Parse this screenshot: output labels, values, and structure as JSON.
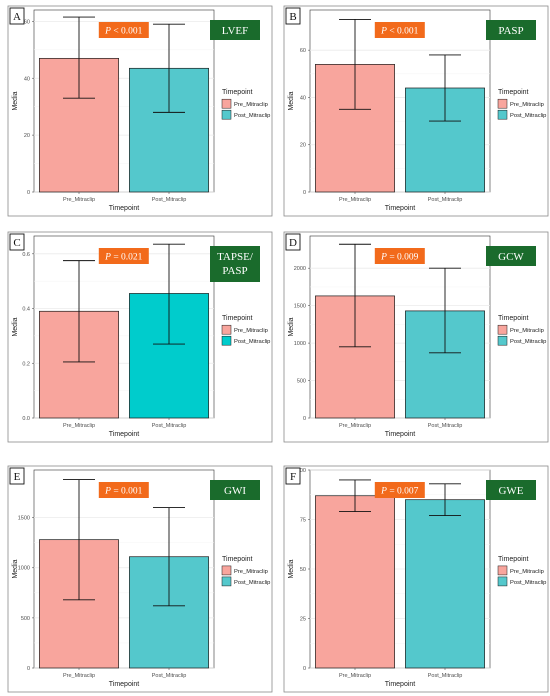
{
  "chart_data": [
    {
      "type": "bar",
      "panel_label": "A",
      "title": "LVEF",
      "p_label": "< 0.001",
      "xlabel": "Timepoint",
      "ylabel": "Media",
      "categories": [
        "Pre_Mitraclip",
        "Post_Mitraclip"
      ],
      "values": [
        47,
        43.5
      ],
      "error_low": [
        33,
        28
      ],
      "error_high": [
        61.5,
        59
      ],
      "ylim": [
        0,
        64
      ],
      "yticks": [
        0,
        20,
        40,
        60
      ],
      "ytick_labels": [
        "0",
        "20",
        "40",
        "60"
      ],
      "legend_title": "Timepoint",
      "legend": [
        "Pre_Mitraclip",
        "Post_Mitraclip"
      ],
      "legend_position": "right",
      "colors": [
        "#f8a59d",
        "#54c8cc"
      ],
      "grid": true
    },
    {
      "type": "bar",
      "panel_label": "B",
      "title": "PASP",
      "p_label": "< 0.001",
      "xlabel": "Timepoint",
      "ylabel": "Media",
      "categories": [
        "Pre_Mitraclip",
        "Post_Mitraclip"
      ],
      "values": [
        54,
        44
      ],
      "error_low": [
        35,
        30
      ],
      "error_high": [
        73,
        58
      ],
      "ylim": [
        0,
        77
      ],
      "yticks": [
        0,
        20,
        40,
        60
      ],
      "ytick_labels": [
        "0",
        "20",
        "40",
        "60"
      ],
      "legend_title": "Timepoint",
      "legend": [
        "Pre_Mitraclip",
        "Post_Mitraclip"
      ],
      "legend_position": "right",
      "colors": [
        "#f8a59d",
        "#54c8cc"
      ],
      "grid": true
    },
    {
      "type": "bar",
      "panel_label": "C",
      "title": "TAPSE/\nPASP",
      "p_label": "= 0.021",
      "xlabel": "Timepoint",
      "ylabel": "Media",
      "categories": [
        "Pre_Mitraclip",
        "Post_Mitraclip"
      ],
      "values": [
        0.39,
        0.455
      ],
      "error_low": [
        0.205,
        0.27
      ],
      "error_high": [
        0.575,
        0.635
      ],
      "ylim": [
        0,
        0.665
      ],
      "yticks": [
        0,
        0.2,
        0.4,
        0.6
      ],
      "ytick_labels": [
        "0.0",
        "0.2",
        "0.4",
        "0.6"
      ],
      "legend_title": "Timepoint",
      "legend": [
        "Pre_Mitraclip",
        "Post_Mitraclip"
      ],
      "legend_position": "right",
      "colors": [
        "#f8a59d",
        "#00cccc"
      ],
      "grid": true
    },
    {
      "type": "bar",
      "panel_label": "D",
      "title": "GCW",
      "p_label": "= 0.009",
      "xlabel": "Timepoint",
      "ylabel": "Media",
      "categories": [
        "Pre_Mitraclip",
        "Post_Mitraclip"
      ],
      "values": [
        1630,
        1430
      ],
      "error_low": [
        950,
        870
      ],
      "error_high": [
        2320,
        2000
      ],
      "ylim": [
        0,
        2430
      ],
      "yticks": [
        0,
        500,
        1000,
        1500,
        2000
      ],
      "ytick_labels": [
        "0",
        "500",
        "1000",
        "1500",
        "2000"
      ],
      "legend_title": "Timepoint",
      "legend": [
        "Pre_Mitraclip",
        "Post_Mitraclip"
      ],
      "legend_position": "right",
      "colors": [
        "#f8a59d",
        "#54c8cc"
      ],
      "grid": true
    },
    {
      "type": "bar",
      "panel_label": "E",
      "title": "GWI",
      "p_label": "= 0.001",
      "xlabel": "Timepoint",
      "ylabel": "Media",
      "categories": [
        "Pre_Mitraclip",
        "Post_Mitraclip"
      ],
      "values": [
        1280,
        1110
      ],
      "error_low": [
        680,
        620
      ],
      "error_high": [
        1880,
        1600
      ],
      "ylim": [
        0,
        1975
      ],
      "yticks": [
        0,
        500,
        1000,
        1500
      ],
      "ytick_labels": [
        "0",
        "500",
        "1000",
        "1500"
      ],
      "legend_title": "Timepoint",
      "legend": [
        "Pre_Mitraclip",
        "Post_Mitraclip"
      ],
      "legend_position": "right",
      "colors": [
        "#f8a59d",
        "#54c8cc"
      ],
      "grid": true
    },
    {
      "type": "bar",
      "panel_label": "F",
      "title": "GWE",
      "p_label": "= 0.007",
      "xlabel": "Timepoint",
      "ylabel": "Media",
      "categories": [
        "Pre_Mitraclip",
        "Post_Mitraclip"
      ],
      "values": [
        87,
        85
      ],
      "error_low": [
        79,
        77
      ],
      "error_high": [
        95,
        93
      ],
      "ylim": [
        0,
        100
      ],
      "yticks": [
        0,
        25,
        50,
        75,
        100
      ],
      "ytick_labels": [
        "0",
        "25",
        "50",
        "75",
        "100"
      ],
      "legend_title": "Timepoint",
      "legend": [
        "Pre_Mitraclip",
        "Post_Mitraclip"
      ],
      "legend_position": "right",
      "colors": [
        "#f8a59d",
        "#54c8cc"
      ],
      "grid": true
    }
  ],
  "styling": {
    "title_box_color": "#1a6b2c",
    "p_box_color": "#f26a1b",
    "bar_edge_color": "#1a1a1a",
    "grid_color": "#ebebeb"
  }
}
